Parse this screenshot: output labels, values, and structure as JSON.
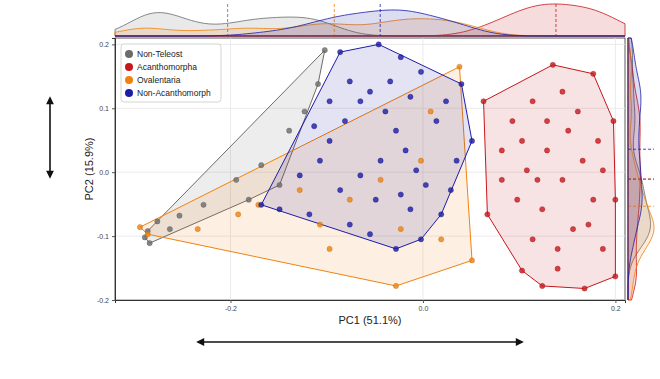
{
  "chart_data": {
    "type": "scatter",
    "x_label": "PC1 (51.1%)",
    "y_label": "PC2 (15.9%)",
    "xlim": [
      -0.32,
      0.21
    ],
    "ylim": [
      -0.2,
      0.21
    ],
    "xticks": [
      -0.2,
      {
        "value": 0,
        "label": "0.0"
      },
      0.2
    ],
    "yticks": [
      -0.2,
      -0.1,
      {
        "value": 0,
        "label": "0.0"
      },
      0.1,
      0.2
    ],
    "grid": true,
    "legend": "top-left",
    "series": [
      {
        "name": "Non-Teleost",
        "color": "#6b6b6b",
        "x": [
          -0.102,
          -0.289,
          -0.284,
          -0.276,
          -0.263,
          -0.253,
          -0.286,
          -0.228,
          -0.194,
          -0.168,
          -0.139,
          -0.123,
          -0.109,
          -0.149,
          -0.181
        ],
        "y": [
          0.191,
          -0.102,
          -0.111,
          -0.077,
          -0.089,
          -0.068,
          -0.092,
          -0.051,
          -0.012,
          0.011,
          0.065,
          0.095,
          0.138,
          -0.02,
          -0.043
        ]
      },
      {
        "name": "Acanthomorpha",
        "color": "#c8161d",
        "x": [
          0.063,
          0.135,
          0.177,
          0.198,
          0.2,
          0.2,
          0.168,
          0.124,
          0.103,
          0.067,
          0.082,
          0.093,
          0.114,
          0.145,
          0.161,
          0.182,
          0.187,
          0.177,
          0.156,
          0.14,
          0.114,
          0.098,
          0.108,
          0.129,
          0.145,
          0.166,
          0.124,
          0.151,
          0.187,
          0.082,
          0.103,
          0.129,
          0.172,
          0.14,
          0.119
        ],
        "y": [
          0.111,
          0.168,
          0.154,
          0.08,
          -0.043,
          -0.163,
          -0.182,
          -0.178,
          -0.154,
          -0.066,
          0.034,
          0.08,
          0.111,
          0.126,
          0.095,
          0.049,
          0.003,
          -0.043,
          -0.089,
          -0.12,
          -0.105,
          -0.043,
          0.003,
          0.034,
          -0.012,
          0.018,
          -0.058,
          0.065,
          -0.12,
          -0.012,
          0.049,
          0.08,
          -0.082,
          -0.151,
          -0.012
        ]
      },
      {
        "name": "Ovalentaria",
        "color": "#f0820f",
        "x": [
          -0.294,
          -0.286,
          -0.234,
          -0.192,
          -0.107,
          -0.028,
          0.051,
          0.038,
          0.008,
          -0.002,
          -0.044,
          -0.076,
          -0.128,
          -0.171,
          -0.023,
          0.019,
          -0.097
        ],
        "y": [
          -0.086,
          -0.097,
          -0.089,
          -0.066,
          -0.082,
          -0.178,
          -0.138,
          0.165,
          0.095,
          0.018,
          -0.012,
          -0.043,
          -0.028,
          -0.051,
          -0.089,
          -0.105,
          -0.12
        ]
      },
      {
        "name": "Non-Acanthomorph",
        "color": "#1c1ca8",
        "x": [
          -0.086,
          -0.046,
          -0.023,
          -0.002,
          0.04,
          0.051,
          0.029,
          0.019,
          -0.002,
          -0.028,
          -0.055,
          -0.076,
          -0.118,
          -0.149,
          -0.168,
          -0.128,
          -0.107,
          -0.097,
          -0.081,
          -0.065,
          -0.055,
          -0.039,
          -0.028,
          -0.018,
          -0.007,
          0.003,
          0.014,
          0.024,
          -0.044,
          -0.065,
          -0.086,
          -0.049,
          -0.023,
          -0.013,
          -0.076,
          -0.097,
          -0.113,
          -0.034,
          -0.013,
          0.035
        ],
        "y": [
          0.188,
          0.2,
          0.18,
          0.157,
          0.138,
          0.049,
          -0.028,
          -0.066,
          -0.105,
          -0.12,
          -0.097,
          -0.082,
          -0.066,
          -0.058,
          -0.051,
          -0.005,
          0.018,
          0.049,
          0.08,
          0.111,
          0.126,
          0.095,
          0.065,
          0.034,
          0.003,
          -0.02,
          0.08,
          0.111,
          0.018,
          -0.005,
          -0.028,
          -0.043,
          -0.035,
          -0.058,
          0.142,
          0.111,
          0.072,
          0.142,
          0.118,
          0.018
        ]
      }
    ]
  }
}
